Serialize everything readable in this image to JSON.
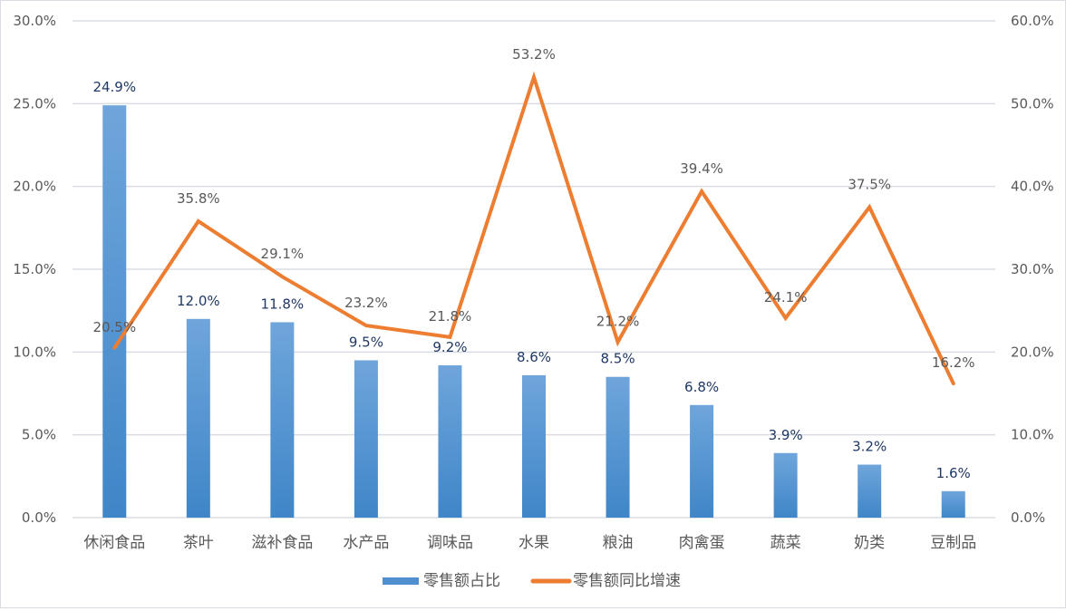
{
  "chart_data": {
    "type": "bar+line",
    "title": "",
    "categories": [
      "休闲食品",
      "茶叶",
      "滋补食品",
      "水产品",
      "调味品",
      "水果",
      "粮油",
      "肉禽蛋",
      "蔬菜",
      "奶类",
      "豆制品"
    ],
    "series": [
      {
        "name": "零售额占比",
        "type": "bar",
        "axis": "left",
        "color": "#5b9bd5",
        "values": [
          24.9,
          12.0,
          11.8,
          9.5,
          9.2,
          8.6,
          8.5,
          6.8,
          3.9,
          3.2,
          1.6
        ],
        "labels": [
          "24.9%",
          "12.0%",
          "11.8%",
          "9.5%",
          "9.2%",
          "8.6%",
          "8.5%",
          "6.8%",
          "3.9%",
          "3.2%",
          "1.6%"
        ]
      },
      {
        "name": "零售额同比增速",
        "type": "line",
        "axis": "right",
        "color": "#ed7d31",
        "values": [
          20.5,
          35.8,
          29.1,
          23.2,
          21.8,
          53.2,
          21.2,
          39.4,
          24.1,
          37.5,
          16.2
        ],
        "labels": [
          "20.5%",
          "35.8%",
          "29.1%",
          "23.2%",
          "21.8%",
          "53.2%",
          "21.2%",
          "39.4%",
          "24.1%",
          "37.5%",
          "16.2%"
        ]
      }
    ],
    "left_axis": {
      "ylim": [
        0,
        30
      ],
      "ticks": [
        "0.0%",
        "5.0%",
        "10.0%",
        "15.0%",
        "20.0%",
        "25.0%",
        "30.0%"
      ]
    },
    "right_axis": {
      "ylim": [
        0,
        60
      ],
      "ticks": [
        "0.0%",
        "10.0%",
        "20.0%",
        "30.0%",
        "40.0%",
        "50.0%",
        "60.0%"
      ]
    },
    "grid": true,
    "legend_position": "bottom"
  },
  "legend": {
    "bar_label": "零售额占比",
    "line_label": "零售额同比增速"
  }
}
